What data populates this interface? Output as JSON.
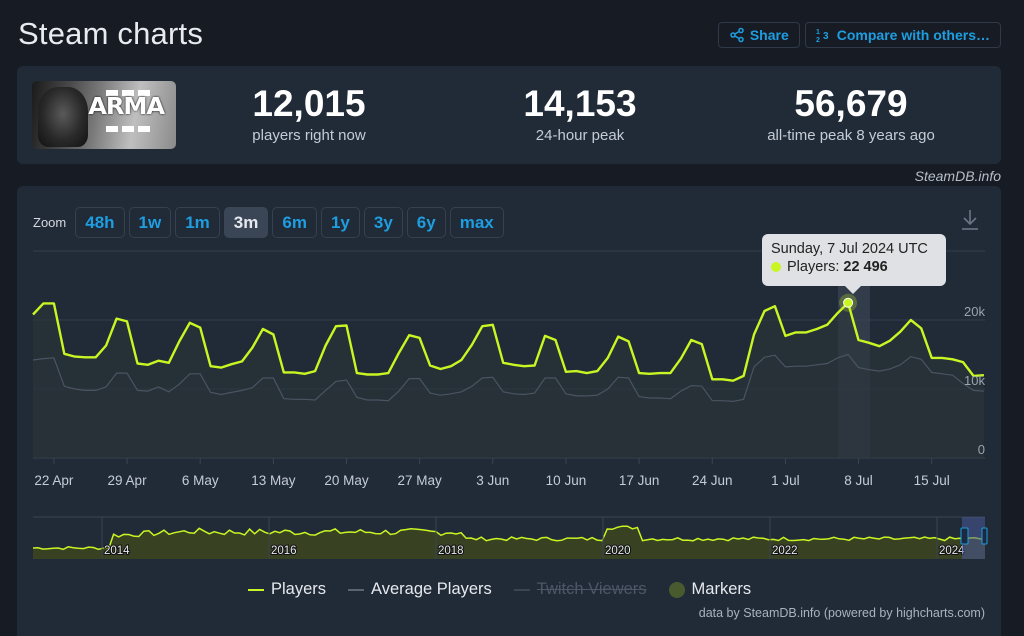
{
  "header": {
    "title": "Steam charts",
    "share_label": "Share",
    "compare_label": "Compare with others…"
  },
  "game": {
    "image_alt": "ARMA III",
    "logo_text": "ARMA"
  },
  "stats": [
    {
      "value": "12,015",
      "label": "players right now"
    },
    {
      "value": "14,153",
      "label": "24-hour peak"
    },
    {
      "value": "56,679",
      "label": "all-time peak 8 years ago"
    }
  ],
  "credit_top": "SteamDB.info",
  "zoom": {
    "label": "Zoom",
    "options": [
      "48h",
      "1w",
      "1m",
      "3m",
      "6m",
      "1y",
      "3y",
      "6y",
      "max"
    ],
    "active": "3m"
  },
  "tooltip": {
    "date": "Sunday, 7 Jul 2024 UTC",
    "series": "Players:",
    "value": "22 496"
  },
  "legend": [
    {
      "label": "Players",
      "color": "#c9f523",
      "enabled": true
    },
    {
      "label": "Average Players",
      "color": "#5a6573",
      "enabled": true
    },
    {
      "label": "Twitch Viewers",
      "color": "#3a4452",
      "enabled": false
    },
    {
      "label": "Markers",
      "color": "#4a5a2f",
      "enabled": true
    }
  ],
  "credit_bottom": "data by SteamDB.info (powered by highcharts.com)",
  "colors": {
    "players": "#c9f523",
    "average": "#5a6573",
    "accent": "#1e9de0",
    "background": "#171c24",
    "card": "#212a37"
  },
  "chart_data": {
    "type": "line",
    "title": "Steam charts",
    "xlabel": "",
    "ylabel": "",
    "ylim": [
      0,
      30000
    ],
    "y_ticks": [
      "0",
      "10k",
      "20k"
    ],
    "x_ticks": [
      "22 Apr",
      "29 Apr",
      "6 May",
      "13 May",
      "20 May",
      "27 May",
      "3 Jun",
      "10 Jun",
      "17 Jun",
      "24 Jun",
      "1 Jul",
      "8 Jul",
      "15 Jul"
    ],
    "grid": true,
    "legend_position": "bottom",
    "x": [
      "20 Apr",
      "21 Apr",
      "22 Apr",
      "23 Apr",
      "24 Apr",
      "25 Apr",
      "26 Apr",
      "27 Apr",
      "28 Apr",
      "29 Apr",
      "30 Apr",
      "1 May",
      "2 May",
      "3 May",
      "4 May",
      "5 May",
      "6 May",
      "7 May",
      "8 May",
      "9 May",
      "10 May",
      "11 May",
      "12 May",
      "13 May",
      "14 May",
      "15 May",
      "16 May",
      "17 May",
      "18 May",
      "19 May",
      "20 May",
      "21 May",
      "22 May",
      "23 May",
      "24 May",
      "25 May",
      "26 May",
      "27 May",
      "28 May",
      "29 May",
      "30 May",
      "31 May",
      "1 Jun",
      "2 Jun",
      "3 Jun",
      "4 Jun",
      "5 Jun",
      "6 Jun",
      "7 Jun",
      "8 Jun",
      "9 Jun",
      "10 Jun",
      "11 Jun",
      "12 Jun",
      "13 Jun",
      "14 Jun",
      "15 Jun",
      "16 Jun",
      "17 Jun",
      "18 Jun",
      "19 Jun",
      "20 Jun",
      "21 Jun",
      "22 Jun",
      "23 Jun",
      "24 Jun",
      "25 Jun",
      "26 Jun",
      "27 Jun",
      "28 Jun",
      "29 Jun",
      "30 Jun",
      "1 Jul",
      "2 Jul",
      "3 Jul",
      "4 Jul",
      "5 Jul",
      "6 Jul",
      "7 Jul",
      "8 Jul",
      "9 Jul",
      "10 Jul",
      "11 Jul",
      "12 Jul",
      "13 Jul",
      "14 Jul",
      "15 Jul",
      "16 Jul",
      "17 Jul",
      "18 Jul",
      "19 Jul",
      "20 Jul"
    ],
    "series": [
      {
        "name": "Players",
        "values": [
          20800,
          22400,
          22400,
          15100,
          14700,
          14600,
          14600,
          16300,
          20200,
          19800,
          13700,
          13500,
          14100,
          13800,
          16900,
          19600,
          18900,
          13300,
          13100,
          13600,
          14000,
          16000,
          18700,
          17900,
          12400,
          12400,
          12200,
          12600,
          16300,
          19100,
          19200,
          12300,
          12100,
          12100,
          12300,
          15200,
          17800,
          17400,
          13400,
          12900,
          13300,
          14200,
          16400,
          19100,
          19300,
          13800,
          13500,
          13300,
          13400,
          17700,
          17100,
          12500,
          12600,
          12300,
          12600,
          14500,
          17600,
          16900,
          12300,
          12200,
          12300,
          12300,
          14400,
          17100,
          16500,
          11400,
          11400,
          11200,
          11900,
          17900,
          21300,
          22000,
          17700,
          18200,
          18200,
          18700,
          19300,
          21000,
          22496,
          17100,
          16700,
          16200,
          17000,
          18300,
          20000,
          18800,
          14500,
          14500,
          14300,
          13900,
          11900,
          12000
        ]
      },
      {
        "name": "Average Players",
        "values": [
          14200,
          14400,
          14500,
          10400,
          10000,
          9800,
          9800,
          10300,
          12300,
          12300,
          9800,
          9700,
          10300,
          9600,
          10700,
          12200,
          12200,
          9500,
          9200,
          9500,
          9800,
          10200,
          11600,
          11600,
          8600,
          8500,
          8500,
          8400,
          9800,
          11100,
          11300,
          8800,
          8400,
          8400,
          8300,
          9700,
          11500,
          11500,
          9400,
          9100,
          9300,
          9600,
          10400,
          11600,
          11700,
          9600,
          9300,
          9200,
          9400,
          11600,
          11600,
          9300,
          9000,
          9000,
          9100,
          10000,
          11700,
          11600,
          8900,
          8700,
          8700,
          8600,
          9700,
          10500,
          10400,
          8300,
          8300,
          8200,
          8500,
          13200,
          14600,
          14900,
          13200,
          13300,
          13300,
          13500,
          13700,
          14500,
          15000,
          13100,
          12800,
          12600,
          12900,
          13500,
          14700,
          14300,
          12400,
          12200,
          12000,
          10800,
          9800,
          9700
        ]
      }
    ],
    "highlight": {
      "x": "7 Jul",
      "series": "Players",
      "value": 22496
    }
  }
}
